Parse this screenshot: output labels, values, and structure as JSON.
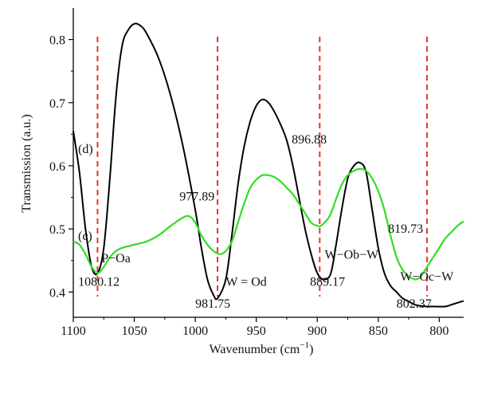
{
  "chart_data": {
    "type": "line",
    "xlabel": "Wavenumber (cm",
    "xlabel_sup": "−1",
    "xlabel_end": ")",
    "ylabel": "Transmission (a.u.)",
    "xlim": [
      1100,
      780
    ],
    "ylim": [
      0.36,
      0.85
    ],
    "x_ticks": [
      1100,
      1050,
      1000,
      950,
      900,
      850,
      800
    ],
    "y_ticks": [
      0.4,
      0.5,
      0.6,
      0.7,
      0.8
    ],
    "x_tick_labels": [
      "1100",
      "1050",
      "1000",
      "950",
      "900",
      "850",
      "800"
    ],
    "y_tick_labels": [
      "0.4",
      "0.5",
      "0.6",
      "0.7",
      "0.8"
    ],
    "reference_lines": [
      1080.12,
      981.75,
      898,
      810
    ],
    "colors": {
      "series_d": "#000000",
      "series_c": "#33dd22",
      "reference": "#e8332a"
    },
    "series": [
      {
        "label": "(d)",
        "x": [
          1100,
          1095,
          1090,
          1085,
          1080,
          1075,
          1070,
          1065,
          1060,
          1055,
          1050,
          1045,
          1040,
          1030,
          1020,
          1010,
          1000,
          995,
          990,
          985,
          981.75,
          975,
          970,
          965,
          960,
          955,
          950,
          945,
          940,
          935,
          930,
          925,
          920,
          915,
          910,
          905,
          900,
          895,
          889.17,
          885,
          880,
          875,
          870,
          865,
          860,
          855,
          850,
          845,
          840,
          835,
          830,
          825,
          820,
          815,
          810,
          805,
          802.37,
          795,
          790,
          785,
          780
        ],
        "y": [
          0.655,
          0.59,
          0.5,
          0.44,
          0.43,
          0.47,
          0.58,
          0.71,
          0.79,
          0.815,
          0.825,
          0.822,
          0.81,
          0.77,
          0.71,
          0.63,
          0.53,
          0.47,
          0.42,
          0.395,
          0.39,
          0.42,
          0.49,
          0.57,
          0.63,
          0.67,
          0.695,
          0.705,
          0.7,
          0.685,
          0.665,
          0.64,
          0.6,
          0.55,
          0.5,
          0.46,
          0.43,
          0.42,
          0.428,
          0.47,
          0.53,
          0.58,
          0.6,
          0.605,
          0.59,
          0.53,
          0.47,
          0.43,
          0.41,
          0.4,
          0.39,
          0.385,
          0.38,
          0.378,
          0.377,
          0.377,
          0.377,
          0.377,
          0.38,
          0.383,
          0.386
        ]
      },
      {
        "label": "(c)",
        "x": [
          1100,
          1095,
          1090,
          1085,
          1080,
          1075,
          1070,
          1065,
          1060,
          1050,
          1040,
          1030,
          1020,
          1010,
          1005,
          1000,
          995,
          990,
          985,
          980,
          975,
          970,
          965,
          960,
          955,
          950,
          945,
          940,
          935,
          930,
          925,
          920,
          915,
          910,
          905,
          900,
          896.88,
          890,
          885,
          880,
          875,
          870,
          865,
          860,
          855,
          850,
          845,
          840,
          835,
          830,
          825,
          819.73,
          815,
          810,
          805,
          800,
          795,
          790,
          785,
          780
        ],
        "y": [
          0.48,
          0.475,
          0.46,
          0.44,
          0.43,
          0.44,
          0.455,
          0.465,
          0.47,
          0.475,
          0.48,
          0.49,
          0.505,
          0.518,
          0.52,
          0.51,
          0.49,
          0.475,
          0.465,
          0.46,
          0.465,
          0.48,
          0.51,
          0.54,
          0.565,
          0.578,
          0.585,
          0.585,
          0.582,
          0.575,
          0.565,
          0.555,
          0.54,
          0.525,
          0.51,
          0.505,
          0.505,
          0.52,
          0.545,
          0.57,
          0.585,
          0.592,
          0.595,
          0.592,
          0.58,
          0.56,
          0.53,
          0.49,
          0.455,
          0.435,
          0.425,
          0.42,
          0.425,
          0.44,
          0.455,
          0.47,
          0.485,
          0.495,
          0.505,
          0.512
        ]
      }
    ],
    "annotations": [
      {
        "text": "P−Oa",
        "x": 1077,
        "y": 0.447
      },
      {
        "text": "1080.12",
        "x": 1096,
        "y": 0.41
      },
      {
        "text": "W = Od",
        "x": 975,
        "y": 0.41
      },
      {
        "text": "981.75",
        "x": 1000,
        "y": 0.375
      },
      {
        "text": "977.89",
        "x": 1013,
        "y": 0.545
      },
      {
        "text": "896.88",
        "x": 921,
        "y": 0.635
      },
      {
        "text": "889.17",
        "x": 906,
        "y": 0.41
      },
      {
        "text": "W−Ob−W",
        "x": 894,
        "y": 0.453
      },
      {
        "text": "819.73",
        "x": 842,
        "y": 0.494
      },
      {
        "text": "W−Oc−W",
        "x": 832,
        "y": 0.418
      },
      {
        "text": "802.37",
        "x": 835,
        "y": 0.375
      }
    ]
  }
}
